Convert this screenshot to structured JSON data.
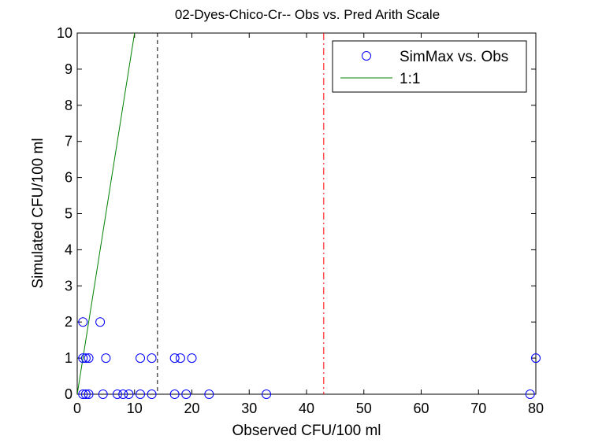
{
  "chart_data": {
    "type": "scatter",
    "title": "02-Dyes-Chico-Cr-- Obs vs. Pred Arith Scale",
    "xlabel": "Observed CFU/100 ml",
    "ylabel": "Simulated CFU/100 ml",
    "xlim": [
      0,
      80
    ],
    "ylim": [
      0,
      10
    ],
    "xticks": [
      0,
      10,
      20,
      30,
      40,
      50,
      60,
      70,
      80
    ],
    "yticks": [
      0,
      1,
      2,
      3,
      4,
      5,
      6,
      7,
      8,
      9,
      10
    ],
    "grid": false,
    "legend_position": "top-right",
    "series": [
      {
        "name": "SimMax vs. Obs",
        "kind": "scatter",
        "marker": "circle-open",
        "color": "#0000ff",
        "points": [
          [
            1,
            2
          ],
          [
            4,
            2
          ],
          [
            1,
            1
          ],
          [
            1.5,
            1
          ],
          [
            2,
            1
          ],
          [
            5,
            1
          ],
          [
            11,
            1
          ],
          [
            13,
            1
          ],
          [
            17,
            1
          ],
          [
            18,
            1
          ],
          [
            20,
            1
          ],
          [
            80,
            1
          ],
          [
            1,
            0
          ],
          [
            1.5,
            0
          ],
          [
            2,
            0
          ],
          [
            4.5,
            0
          ],
          [
            7,
            0
          ],
          [
            8,
            0
          ],
          [
            9,
            0
          ],
          [
            11,
            0
          ],
          [
            13,
            0
          ],
          [
            17,
            0
          ],
          [
            19,
            0
          ],
          [
            23,
            0
          ],
          [
            33,
            0
          ],
          [
            79,
            0
          ]
        ]
      },
      {
        "name": "1:1",
        "kind": "line",
        "color": "#008000",
        "points": [
          [
            0,
            0
          ],
          [
            10,
            10
          ]
        ]
      }
    ],
    "reference_lines": [
      {
        "x": 14,
        "style": "dashed",
        "color": "#000000"
      },
      {
        "x": 43,
        "style": "dashdot",
        "color": "#ff0000"
      }
    ]
  }
}
